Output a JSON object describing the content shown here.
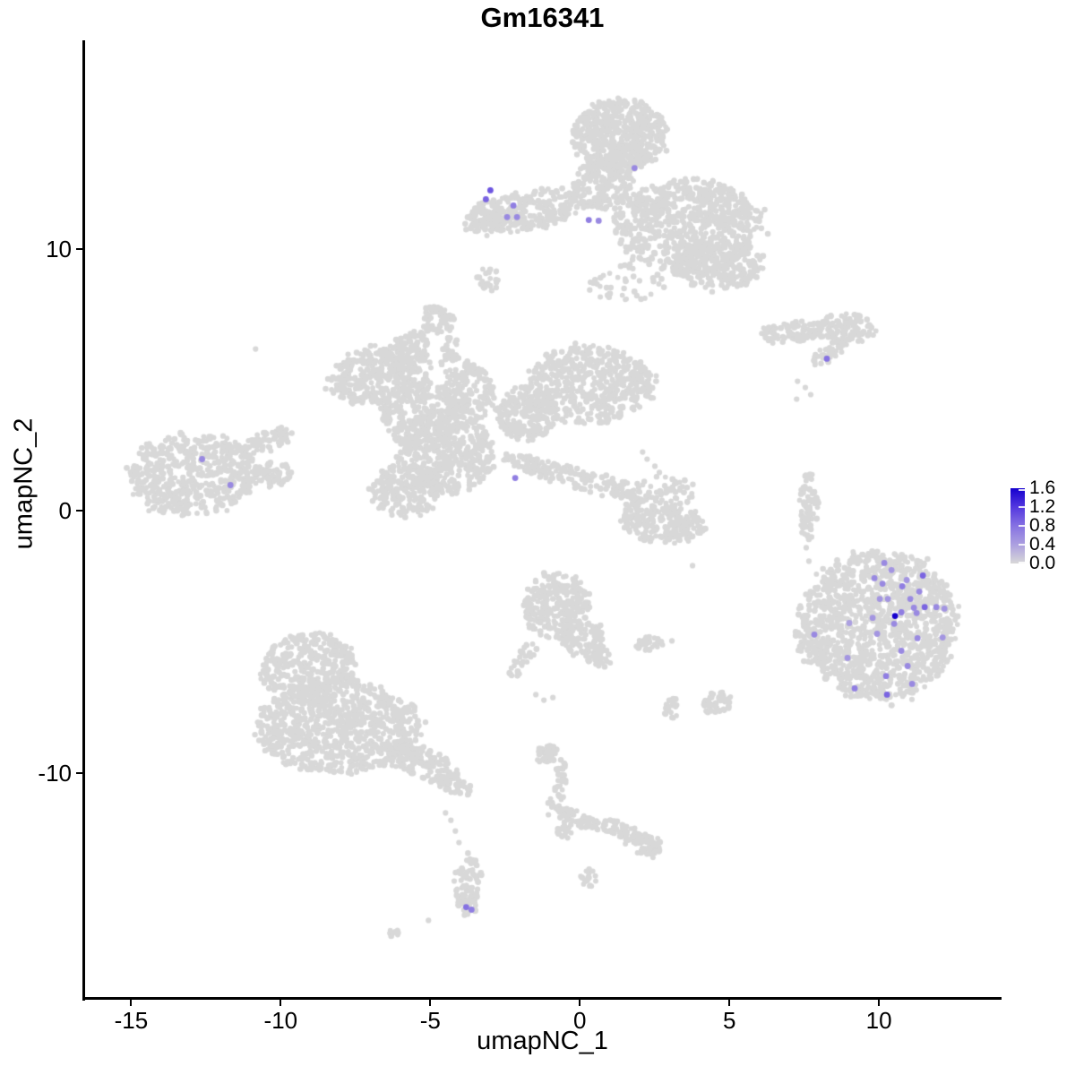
{
  "title": "Gm16341",
  "chart_data": {
    "type": "scatter",
    "title": "Gm16341",
    "xlabel": "umapNC_1",
    "ylabel": "umapNC_2",
    "xlim": [
      -16.6,
      14.1
    ],
    "ylim": [
      -18.6,
      17.95
    ],
    "x_ticks": [
      -15,
      -10,
      -5,
      0,
      5,
      10
    ],
    "y_ticks": [
      10,
      0,
      -10
    ],
    "grid": false,
    "legend": {
      "position": "right",
      "domain": [
        0.0,
        1.6
      ],
      "ticks": [
        1.6,
        1.2,
        0.8,
        0.4,
        0.0
      ],
      "low_color": "#D8D8D8",
      "high_color": "#1500CE",
      "gradient_stops": [
        "#D8D8D8",
        "#ACA0E0",
        "#8672E2",
        "#5438DF",
        "#1500CE"
      ]
    },
    "background_cells": {
      "color": "#D8D8D8",
      "point_radius": 3.1,
      "blob_format": [
        "x",
        "y",
        "rx",
        "ry",
        "rot_deg",
        "n"
      ],
      "blobs": [
        [
          1.35,
          14.32,
          1.56,
          1.37,
          0,
          550
        ],
        [
          0.75,
          12.5,
          0.96,
          1.02,
          0,
          200
        ],
        [
          3.62,
          10.9,
          2.46,
          1.78,
          0,
          700
        ],
        [
          4.58,
          9.43,
          1.56,
          1.02,
          0,
          220
        ],
        [
          -1.77,
          11.45,
          1.98,
          0.72,
          -8,
          280
        ],
        [
          -3.2,
          11.03,
          0.66,
          0.51,
          0,
          60
        ],
        [
          1.59,
          8.64,
          1.32,
          0.82,
          0,
          40
        ],
        [
          -3.11,
          8.85,
          0.36,
          0.48,
          0,
          22
        ],
        [
          7.1,
          6.83,
          1.02,
          0.38,
          -5,
          90
        ],
        [
          8.89,
          6.97,
          0.96,
          0.58,
          0,
          120
        ],
        [
          8.29,
          5.98,
          0.63,
          0.27,
          -28,
          35
        ],
        [
          -6.68,
          5.16,
          1.74,
          1.13,
          -10,
          330
        ],
        [
          -5.99,
          5.91,
          1.14,
          0.55,
          -38,
          110
        ],
        [
          -5.36,
          3.62,
          1.32,
          1.3,
          0,
          260
        ],
        [
          -4.49,
          2.19,
          1.62,
          1.5,
          0,
          420
        ],
        [
          -5.84,
          0.79,
          1.14,
          0.96,
          0,
          200
        ],
        [
          -3.71,
          4.48,
          0.84,
          1.16,
          0,
          170
        ],
        [
          -4.73,
          7.31,
          0.51,
          0.55,
          0,
          55
        ],
        [
          -4.31,
          6.08,
          0.27,
          0.82,
          18,
          35
        ],
        [
          0.3,
          4.82,
          2.16,
          1.47,
          0,
          520
        ],
        [
          -1.77,
          3.72,
          1.02,
          1.02,
          0,
          210
        ],
        [
          -0.27,
          1.3,
          2.49,
          0.38,
          15,
          170
        ],
        [
          -12.96,
          1.4,
          2.1,
          1.57,
          -5,
          520
        ],
        [
          -10.54,
          2.63,
          1.08,
          0.38,
          -22,
          70
        ],
        [
          -10.39,
          1.37,
          0.78,
          0.44,
          -10,
          60
        ],
        [
          -9.04,
          -6.01,
          1.56,
          1.37,
          0,
          380
        ],
        [
          -8.05,
          -8.23,
          2.75,
          1.78,
          0,
          800
        ],
        [
          -5.24,
          -9.6,
          1.2,
          0.61,
          18,
          140
        ],
        [
          -4.16,
          -10.49,
          0.6,
          0.38,
          25,
          50
        ],
        [
          -3.77,
          -14.18,
          0.42,
          1.02,
          8,
          70
        ],
        [
          -3.68,
          -15.0,
          0.39,
          0.38,
          0,
          30
        ],
        [
          -0.81,
          -3.59,
          1.11,
          1.3,
          0,
          260
        ],
        [
          0.09,
          -4.82,
          0.72,
          0.61,
          0,
          90
        ],
        [
          0.63,
          -5.57,
          0.39,
          0.38,
          0,
          35
        ],
        [
          -1.92,
          -5.67,
          0.24,
          0.89,
          35,
          30
        ],
        [
          2.4,
          -5.06,
          0.51,
          0.27,
          0,
          28
        ],
        [
          2.84,
          -0.51,
          1.38,
          0.68,
          0,
          180
        ],
        [
          1.77,
          0.0,
          0.33,
          0.55,
          20,
          35
        ],
        [
          2.78,
          0.68,
          1.14,
          0.61,
          0,
          60
        ],
        [
          7.66,
          0.21,
          0.3,
          1.26,
          0,
          70
        ],
        [
          10.03,
          -4.37,
          2.57,
          2.87,
          0,
          1250
        ],
        [
          7.75,
          -4.95,
          0.51,
          0.82,
          0,
          60
        ],
        [
          -1.14,
          -9.29,
          0.39,
          0.38,
          0,
          40
        ],
        [
          -0.72,
          -10.49,
          0.24,
          0.99,
          12,
          45
        ],
        [
          -0.42,
          -11.68,
          0.36,
          0.44,
          0,
          35
        ],
        [
          -0.57,
          -12.23,
          0.24,
          0.31,
          0,
          15
        ],
        [
          0.63,
          -11.96,
          0.93,
          0.27,
          8,
          55
        ],
        [
          1.77,
          -12.4,
          0.54,
          0.31,
          12,
          40
        ],
        [
          2.25,
          -12.78,
          0.45,
          0.44,
          0,
          45
        ],
        [
          3.02,
          -7.52,
          0.3,
          0.41,
          0,
          22
        ],
        [
          4.58,
          -7.34,
          0.45,
          0.44,
          0,
          45
        ],
        [
          0.3,
          -14.01,
          0.27,
          0.31,
          0,
          18
        ],
        [
          -6.23,
          -16.16,
          0.27,
          0.2,
          -30,
          12
        ]
      ],
      "singles": [
        [
          -10.84,
          6.18
        ],
        [
          -4.49,
          -11.51
        ],
        [
          -4.31,
          -11.79
        ],
        [
          -4.16,
          -12.2
        ],
        [
          -4.04,
          -12.64
        ],
        [
          -5.06,
          -15.61
        ],
        [
          -1.05,
          -11.58
        ],
        [
          2.1,
          2.25
        ],
        [
          2.25,
          1.98
        ],
        [
          2.51,
          1.71
        ],
        [
          2.66,
          1.47
        ],
        [
          7.28,
          4.95
        ],
        [
          7.54,
          4.71
        ],
        [
          7.72,
          4.44
        ],
        [
          7.25,
          4.27
        ],
        [
          3.77,
          -2.08
        ],
        [
          1.89,
          -5.16
        ],
        [
          3.08,
          -4.95
        ],
        [
          7.43,
          -0.82
        ],
        [
          7.75,
          -0.99
        ],
        [
          7.57,
          -1.4
        ],
        [
          7.66,
          -1.91
        ],
        [
          8.41,
          -2.39
        ],
        [
          8.2,
          -2.87
        ],
        [
          8.71,
          -3.31
        ],
        [
          7.37,
          -3.62
        ],
        [
          -1.47,
          -7.0
        ],
        [
          -1.2,
          -7.21
        ],
        [
          -0.9,
          -7.11
        ]
      ]
    },
    "expressing_cells": {
      "point_radius": 3.4,
      "point_format": [
        "x",
        "y",
        "expression"
      ],
      "points": [
        [
          -2.99,
          12.23,
          1.0
        ],
        [
          -3.14,
          11.89,
          0.9
        ],
        [
          -2.22,
          11.65,
          0.7
        ],
        [
          -2.43,
          11.21,
          0.6
        ],
        [
          -2.1,
          11.21,
          0.6
        ],
        [
          0.3,
          11.1,
          0.7
        ],
        [
          0.63,
          11.07,
          0.6
        ],
        [
          1.83,
          13.08,
          0.6
        ],
        [
          8.26,
          5.81,
          0.8
        ],
        [
          -2.16,
          1.26,
          0.7
        ],
        [
          -12.63,
          1.98,
          0.6
        ],
        [
          -11.68,
          0.99,
          0.6
        ],
        [
          -3.8,
          -15.1,
          0.8
        ],
        [
          -3.62,
          -15.2,
          0.7
        ],
        [
          10.18,
          -1.98,
          0.6
        ],
        [
          10.42,
          -2.25,
          0.5
        ],
        [
          11.47,
          -2.46,
          0.9
        ],
        [
          9.85,
          -2.56,
          0.6
        ],
        [
          10.12,
          -2.77,
          0.6
        ],
        [
          10.93,
          -2.63,
          0.5
        ],
        [
          10.78,
          -2.87,
          0.7
        ],
        [
          11.35,
          -3.07,
          0.6
        ],
        [
          10.03,
          -3.35,
          0.5
        ],
        [
          10.3,
          -3.35,
          0.5
        ],
        [
          11.05,
          -3.35,
          0.6
        ],
        [
          11.17,
          -3.69,
          0.6
        ],
        [
          11.53,
          -3.66,
          0.9
        ],
        [
          11.92,
          -3.66,
          0.6
        ],
        [
          12.19,
          -3.72,
          0.5
        ],
        [
          11.26,
          -3.89,
          0.6
        ],
        [
          10.54,
          -4.0,
          1.6
        ],
        [
          10.75,
          -3.86,
          0.7
        ],
        [
          9.79,
          -4.07,
          0.5
        ],
        [
          10.51,
          -4.3,
          0.6
        ],
        [
          9.01,
          -4.27,
          0.4
        ],
        [
          9.94,
          -4.68,
          0.5
        ],
        [
          7.84,
          -4.71,
          0.6
        ],
        [
          11.29,
          -4.85,
          0.6
        ],
        [
          12.13,
          -4.82,
          0.5
        ],
        [
          10.75,
          -5.33,
          0.6
        ],
        [
          8.95,
          -5.6,
          0.5
        ],
        [
          10.96,
          -5.91,
          0.6
        ],
        [
          10.24,
          -6.29,
          0.7
        ],
        [
          11.11,
          -6.59,
          0.6
        ],
        [
          9.19,
          -6.76,
          0.7
        ],
        [
          10.27,
          -7.0,
          0.9
        ]
      ]
    }
  }
}
